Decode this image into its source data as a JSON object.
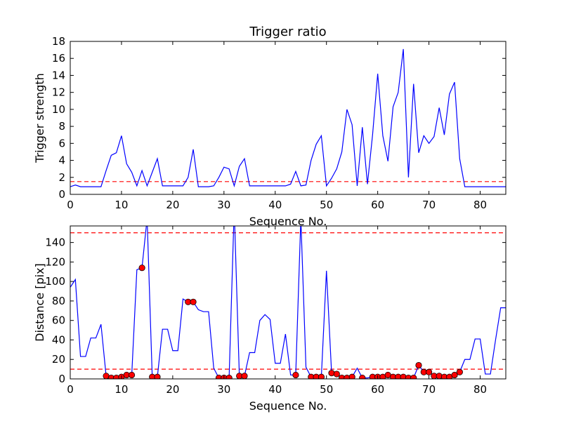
{
  "colors": {
    "line": "#0000ff",
    "threshold": "#ff0000",
    "marker": "#ff0000"
  },
  "chart_data": [
    {
      "type": "line",
      "title": "Trigger ratio",
      "xlabel": "Sequence No.",
      "ylabel": "Trigger strength",
      "xlim": [
        0,
        85
      ],
      "ylim": [
        0,
        18
      ],
      "xticks": [
        0,
        10,
        20,
        30,
        40,
        50,
        60,
        70,
        80
      ],
      "yticks": [
        0,
        2,
        4,
        6,
        8,
        10,
        12,
        14,
        16,
        18
      ],
      "threshold": 1.5,
      "series": [
        {
          "x": [
            0,
            1,
            2,
            3,
            4,
            5,
            6,
            7,
            8,
            9,
            10,
            11,
            12,
            13,
            14,
            15,
            16,
            17,
            18,
            19,
            20,
            21,
            22,
            23,
            24,
            25,
            26,
            27,
            28,
            29,
            30,
            31,
            32,
            33,
            34,
            35,
            36,
            37,
            38,
            39,
            40,
            41,
            42,
            43,
            44,
            45,
            46,
            47,
            48,
            49,
            50,
            51,
            52,
            53,
            54,
            55,
            56,
            57,
            58,
            59,
            60,
            61,
            62,
            63,
            64,
            65,
            66,
            67,
            68,
            69,
            70,
            71,
            72,
            73,
            74,
            75,
            76,
            77,
            78,
            79,
            80,
            81,
            82,
            83,
            84,
            85
          ],
          "y": [
            0.9,
            1.1,
            0.9,
            0.9,
            0.9,
            0.9,
            0.9,
            2.8,
            4.6,
            4.9,
            6.9,
            3.6,
            2.6,
            1.0,
            2.8,
            1.0,
            2.6,
            4.2,
            1.0,
            1.0,
            1.0,
            1.0,
            1.0,
            2.0,
            5.3,
            0.9,
            0.9,
            0.9,
            1.0,
            2.0,
            3.2,
            3.0,
            1.0,
            3.3,
            4.2,
            1.0,
            1.0,
            1.0,
            1.0,
            1.0,
            1.0,
            1.0,
            1.0,
            1.2,
            2.7,
            1.0,
            1.1,
            4.0,
            5.9,
            6.9,
            1.0,
            1.9,
            3.0,
            5.0,
            10.0,
            8.2,
            1.0,
            7.9,
            1.2,
            7.0,
            14.2,
            6.9,
            3.9,
            10.3,
            12.0,
            17.1,
            2.0,
            13.0,
            4.9,
            6.9,
            6.0,
            6.8,
            10.2,
            7.0,
            11.8,
            13.2,
            4.2,
            0.9,
            0.9,
            0.9,
            0.9,
            0.9,
            0.9,
            0.9,
            0.9,
            0.9
          ]
        }
      ]
    },
    {
      "type": "line",
      "title": "",
      "xlabel": "Sequence No.",
      "ylabel": "Distance [pix]",
      "xlim": [
        0,
        85
      ],
      "ylim": [
        0,
        157
      ],
      "xticks": [
        0,
        10,
        20,
        30,
        40,
        50,
        60,
        70,
        80
      ],
      "yticks": [
        0,
        20,
        40,
        60,
        80,
        100,
        120,
        140
      ],
      "thresholds": [
        10,
        150
      ],
      "series": [
        {
          "x": [
            0,
            1,
            2,
            3,
            4,
            5,
            6,
            7,
            8,
            9,
            10,
            11,
            12,
            13,
            14,
            15,
            16,
            17,
            18,
            19,
            20,
            21,
            22,
            23,
            24,
            25,
            26,
            27,
            28,
            29,
            30,
            31,
            32,
            33,
            34,
            35,
            36,
            37,
            38,
            39,
            40,
            41,
            42,
            43,
            44,
            45,
            46,
            47,
            48,
            49,
            50,
            51,
            52,
            53,
            54,
            55,
            56,
            57,
            58,
            59,
            60,
            61,
            62,
            63,
            64,
            65,
            66,
            67,
            68,
            69,
            70,
            71,
            72,
            73,
            74,
            75,
            76,
            77,
            78,
            79,
            80,
            81,
            82,
            83,
            84,
            85
          ],
          "y": [
            94,
            102,
            23,
            23,
            42,
            42,
            56,
            3,
            1,
            1,
            2,
            4,
            4,
            112,
            114,
            165,
            2,
            2,
            51,
            51,
            29,
            29,
            82,
            79,
            79,
            71,
            69,
            69,
            11,
            1,
            1,
            1,
            175,
            3,
            3,
            27,
            27,
            60,
            66,
            61,
            16,
            16,
            46,
            4,
            4,
            165,
            12,
            2,
            2,
            2,
            111,
            6,
            5,
            1,
            1,
            2,
            11,
            1,
            1,
            2,
            2,
            2,
            4,
            2,
            2,
            2,
            1,
            1,
            14,
            7,
            7,
            3,
            3,
            2,
            2,
            4,
            7,
            20,
            20,
            41,
            41,
            5,
            5,
            40,
            73,
            73
          ]
        }
      ],
      "markers": {
        "x": [
          7,
          8,
          9,
          10,
          11,
          12,
          14,
          16,
          17,
          23,
          24,
          29,
          30,
          31,
          33,
          34,
          44,
          47,
          48,
          49,
          51,
          52,
          53,
          54,
          55,
          57,
          59,
          60,
          61,
          62,
          63,
          64,
          65,
          66,
          67,
          68,
          69,
          70,
          71,
          72,
          73,
          74,
          75,
          76
        ],
        "y": [
          3,
          1,
          1,
          2,
          4,
          4,
          114,
          2,
          2,
          79,
          79,
          1,
          1,
          1,
          3,
          3,
          4,
          2,
          2,
          2,
          6,
          5,
          1,
          1,
          2,
          1,
          2,
          2,
          2,
          4,
          2,
          2,
          2,
          1,
          1,
          14,
          7,
          7,
          3,
          3,
          2,
          2,
          4,
          7
        ]
      }
    }
  ]
}
